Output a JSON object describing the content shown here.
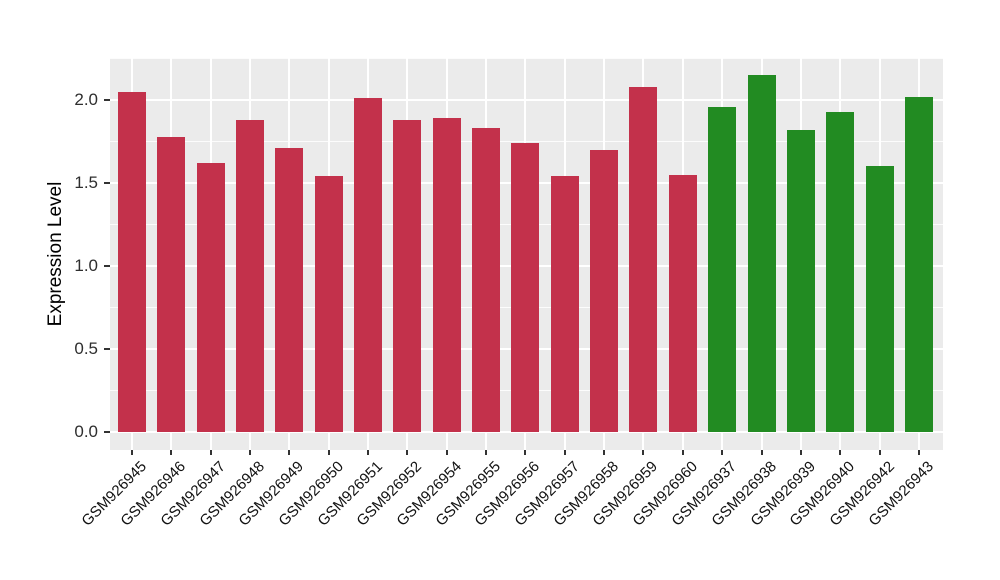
{
  "chart_data": {
    "type": "bar",
    "title": "",
    "xlabel": "",
    "ylabel": "Expression Level",
    "categories": [
      "GSM926945",
      "GSM926946",
      "GSM926947",
      "GSM926948",
      "GSM926949",
      "GSM926950",
      "GSM926951",
      "GSM926952",
      "GSM926954",
      "GSM926955",
      "GSM926956",
      "GSM926957",
      "GSM926958",
      "GSM926959",
      "GSM926960",
      "GSM926937",
      "GSM926938",
      "GSM926939",
      "GSM926940",
      "GSM926942",
      "GSM926943"
    ],
    "values": [
      2.05,
      1.78,
      1.62,
      1.88,
      1.71,
      1.54,
      2.01,
      1.88,
      1.89,
      1.83,
      1.74,
      1.54,
      1.7,
      2.08,
      1.55,
      1.96,
      2.15,
      1.82,
      1.93,
      1.6,
      2.02
    ],
    "bar_colors": [
      "#C3314B",
      "#C3314B",
      "#C3314B",
      "#C3314B",
      "#C3314B",
      "#C3314B",
      "#C3314B",
      "#C3314B",
      "#C3314B",
      "#C3314B",
      "#C3314B",
      "#C3314B",
      "#C3314B",
      "#C3314B",
      "#C3314B",
      "#228B22",
      "#228B22",
      "#228B22",
      "#228B22",
      "#228B22",
      "#228B22"
    ],
    "ylim": [
      0,
      2.25
    ],
    "yticks": [
      0.0,
      0.5,
      1.0,
      1.5,
      2.0
    ],
    "ytick_labels": [
      "0.0",
      "0.5",
      "1.0",
      "1.5",
      "2.0"
    ],
    "yminor": [
      0.25,
      0.75,
      1.25,
      1.75,
      2.25
    ],
    "grid": true,
    "legend": false,
    "panel_background": "#EBEBEB",
    "gridline_color": "#FFFFFF"
  }
}
